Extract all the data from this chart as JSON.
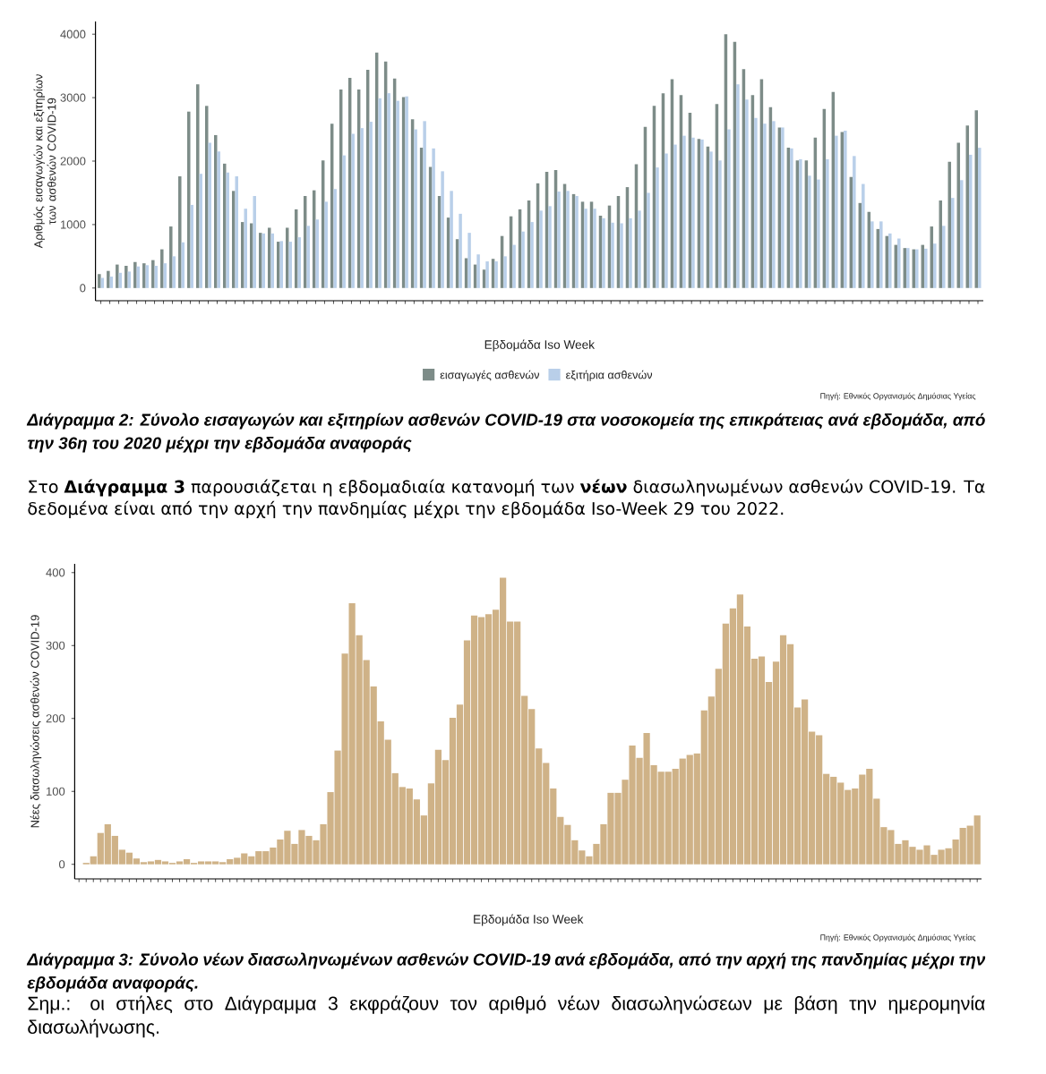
{
  "chart_data": [
    {
      "type": "bar",
      "title": "Διάγραμμα 2: Σύνολο εισαγωγών και εξιτηρίων ασθενών COVID-19 στα νοσοκομεία της επικράτειας ανά εβδομάδα, από την 36η του 2020 μέχρι την εβδομάδα αναφοράς",
      "xlabel": "Εβδομάδα Iso Week",
      "ylabel": "Αριθμός εισαγωγών και εξιτηρίων των ασθενών COVID-19",
      "categories": [
        null,
        null,
        null,
        null,
        null,
        null,
        null,
        null,
        null,
        null,
        null,
        null,
        null,
        null,
        null,
        null,
        null,
        null,
        null,
        null,
        null,
        null,
        null,
        null,
        null,
        null,
        null,
        null,
        null,
        null,
        null,
        null,
        null,
        null,
        null,
        null,
        null,
        null,
        null,
        null,
        null,
        null,
        null,
        null,
        null,
        null,
        null,
        null,
        null,
        null,
        null,
        null,
        null,
        null,
        null,
        null,
        null,
        null,
        null,
        null,
        null,
        null,
        null,
        null,
        null,
        null,
        null,
        null,
        null,
        null,
        null,
        null,
        null,
        null,
        null,
        null,
        null,
        null,
        null,
        null,
        null,
        null,
        null,
        null,
        null,
        null,
        null,
        null,
        null,
        null,
        null,
        null,
        null,
        null,
        null,
        null,
        null,
        null,
        null
      ],
      "series": [
        {
          "name": "εισαγωγές ασθενών",
          "color": "#7d8c88",
          "values": [
            220,
            270,
            370,
            350,
            410,
            390,
            440,
            610,
            970,
            1760,
            2780,
            3210,
            2870,
            2410,
            1960,
            1530,
            1040,
            1020,
            870,
            950,
            730,
            950,
            1240,
            1450,
            1540,
            2010,
            2590,
            3130,
            3310,
            3130,
            3440,
            3710,
            3570,
            3300,
            3010,
            2660,
            2210,
            1910,
            1450,
            1110,
            770,
            470,
            370,
            290,
            460,
            820,
            1130,
            1240,
            1380,
            1650,
            1830,
            1860,
            1640,
            1480,
            1360,
            1360,
            1140,
            1300,
            1450,
            1590,
            1950,
            2540,
            2870,
            3070,
            3290,
            3040,
            2760,
            2350,
            2230,
            2900,
            4000,
            3880,
            3450,
            3040,
            3290,
            2850,
            2530,
            2210,
            2010,
            2010,
            2370,
            2820,
            3090,
            2460,
            1750,
            1340,
            1200,
            930,
            820,
            680,
            630,
            610,
            680,
            970,
            1380,
            1990,
            2290,
            2560,
            2800
          ]
        },
        {
          "name": "εξιτήρια ασθενών",
          "color": "#b9cfe9",
          "values": [
            160,
            180,
            240,
            260,
            340,
            360,
            350,
            390,
            500,
            720,
            1310,
            1800,
            2290,
            2150,
            1820,
            1760,
            1250,
            1450,
            860,
            860,
            740,
            730,
            800,
            980,
            1080,
            1360,
            1560,
            2090,
            2430,
            2520,
            2620,
            2990,
            3070,
            2950,
            3020,
            2500,
            2630,
            2200,
            1840,
            1530,
            1170,
            870,
            530,
            420,
            420,
            500,
            680,
            890,
            1040,
            1220,
            1290,
            1520,
            1530,
            1450,
            1250,
            1250,
            1100,
            1030,
            1020,
            1100,
            1220,
            1500,
            1900,
            2120,
            2260,
            2400,
            2370,
            2340,
            2150,
            2010,
            2500,
            3210,
            2970,
            2680,
            2590,
            2630,
            2530,
            2200,
            2030,
            1770,
            1710,
            2030,
            2400,
            2480,
            2080,
            1640,
            1050,
            1050,
            860,
            780,
            630,
            610,
            620,
            700,
            980,
            1420,
            1700,
            2100,
            2210
          ]
        }
      ],
      "ylim": [
        -200,
        4200
      ],
      "yticks": [
        0,
        1000,
        2000,
        3000,
        4000
      ],
      "legend": "bottom",
      "annotations": [
        "Πηγή: Εθνικός Οργανισμός Δημόσιας Υγείας"
      ]
    },
    {
      "type": "bar",
      "title": "Διάγραμμα 3: Σύνολο νέων διασωληνωμένων ασθενών COVID-19 ανά εβδομάδα, από την αρχή της πανδημίας μέχρι την εβδομάδα αναφοράς.",
      "xlabel": "Εβδομάδα Iso Week",
      "ylabel": "Νέες διασωληνώσεις ασθενών COVID-19",
      "categories": [
        null,
        null,
        null,
        null,
        null,
        null,
        null,
        null,
        null,
        null,
        null,
        null,
        null,
        null,
        null,
        null,
        null,
        null,
        null,
        null,
        null,
        null,
        null,
        null,
        null,
        null,
        null,
        null,
        null,
        null,
        null,
        null,
        null,
        null,
        null,
        null,
        null,
        null,
        null,
        null,
        null,
        null,
        null,
        null,
        null,
        null,
        null,
        null,
        null,
        null,
        null,
        null,
        null,
        null,
        null,
        null,
        null,
        null,
        null,
        null,
        null,
        null,
        null,
        null,
        null,
        null,
        null,
        null,
        null,
        null,
        null,
        null,
        null,
        null,
        null,
        null,
        null,
        null,
        null,
        null,
        null,
        null,
        null,
        null,
        null,
        null,
        null,
        null,
        null,
        null,
        null,
        null,
        null,
        null,
        null,
        null,
        null,
        null,
        null,
        null,
        null,
        null,
        null,
        null,
        null,
        null,
        null,
        null,
        null,
        null,
        null,
        null,
        null,
        null,
        null,
        null,
        null,
        null,
        null,
        null,
        null,
        null,
        null,
        null,
        null,
        null
      ],
      "values": [
        null,
        2,
        11,
        43,
        55,
        39,
        20,
        16,
        8,
        3,
        4,
        6,
        4,
        2,
        4,
        7,
        2,
        4,
        4,
        4,
        3,
        7,
        9,
        15,
        11,
        18,
        18,
        23,
        34,
        46,
        28,
        47,
        39,
        33,
        55,
        99,
        156,
        289,
        358,
        314,
        280,
        244,
        196,
        171,
        125,
        106,
        104,
        89,
        67,
        111,
        157,
        143,
        201,
        219,
        307,
        341,
        339,
        343,
        349,
        393,
        333,
        333,
        231,
        213,
        159,
        139,
        104,
        65,
        54,
        33,
        19,
        11,
        28,
        55,
        98,
        98,
        116,
        163,
        146,
        180,
        136,
        127,
        127,
        131,
        145,
        150,
        152,
        211,
        230,
        268,
        330,
        351,
        370,
        326,
        282,
        285,
        250,
        278,
        314,
        302,
        215,
        226,
        182,
        177,
        124,
        120,
        112,
        102,
        104,
        123,
        131,
        90,
        51,
        47,
        28,
        33,
        24,
        20,
        26,
        13,
        20,
        22,
        34,
        50,
        53,
        67
      ],
      "color": "#cfb287",
      "ylim": [
        -20,
        412
      ],
      "yticks": [
        0,
        100,
        200,
        300,
        400
      ],
      "annotations": [
        "Στο **Διάγραμμα 3** παρουσιάζεται η εβδομαδιαία κατανομή των **νέων** διασωληνωμένων ασθενών COVID-19. Τα δεδομένα είναι από την αρχή την πανδημίας μέχρι την εβδομάδα Iso-Week 29 του 2022.",
        "Πηγή: Εθνικός Οργανισμός Δημόσιας Υγείας",
        "Σημ.: οι στήλες στο Διάγραμμα 3 εκφράζουν τον αριθμό νέων διασωληνώσεων με βάση την ημερομηνία διασωλήνωσης."
      ]
    }
  ]
}
